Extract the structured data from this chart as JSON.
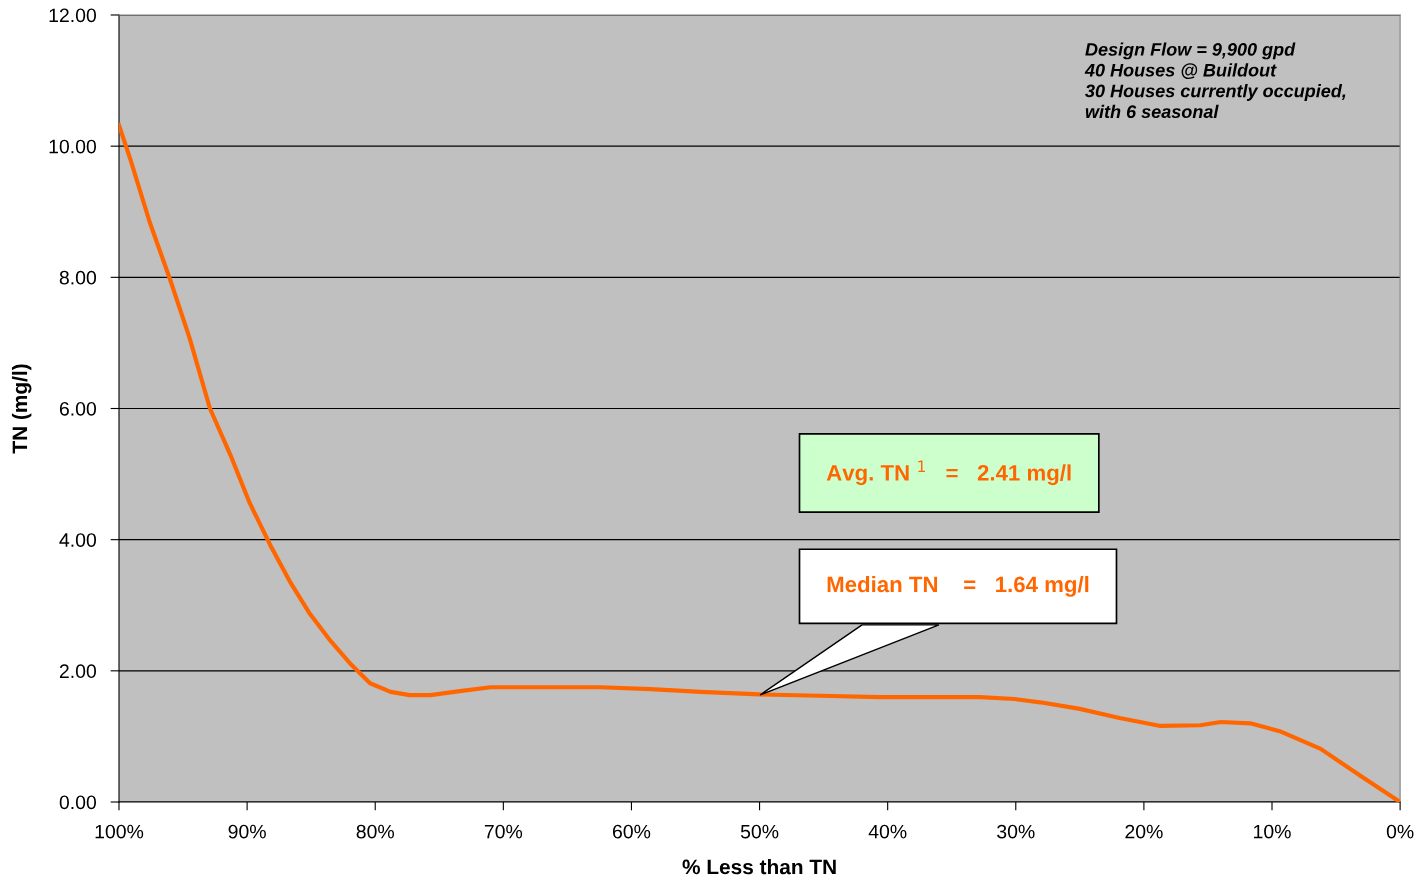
{
  "chart_data": {
    "type": "line",
    "xlabel": "% Less than TN",
    "ylabel": "TN (mg/l)",
    "x": [
      100,
      99.1,
      97.6,
      96.0,
      94.5,
      92.9,
      91.3,
      89.8,
      88.2,
      86.6,
      85.1,
      83.5,
      81.9,
      80.4,
      78.8,
      77.3,
      75.7,
      73.4,
      71.0,
      67.9,
      62.4,
      58.5,
      54.6,
      50,
      45.3,
      40.6,
      37.5,
      32.8,
      30.1,
      28.1,
      25.0,
      21.9,
      18.7,
      15.6,
      14.0,
      11.7,
      9.4,
      6.2,
      3.1,
      0
    ],
    "series": [
      {
        "color": "#ff6600",
        "values": [
          10.32,
          9.79,
          8.84,
          7.96,
          7.08,
          6.0,
          5.29,
          4.56,
          3.92,
          3.34,
          2.87,
          2.46,
          2.1,
          1.81,
          1.68,
          1.63,
          1.63,
          1.69,
          1.75,
          1.75,
          1.75,
          1.72,
          1.68,
          1.64,
          1.62,
          1.6,
          1.6,
          1.6,
          1.57,
          1.52,
          1.42,
          1.28,
          1.16,
          1.17,
          1.22,
          1.2,
          1.08,
          0.81,
          0.4,
          0
        ]
      }
    ],
    "xlim": [
      100,
      0
    ],
    "xticks": [
      {
        "value": 100,
        "label": "100%"
      },
      {
        "value": 90,
        "label": "90%"
      },
      {
        "value": 80,
        "label": "80%"
      },
      {
        "value": 70,
        "label": "70%"
      },
      {
        "value": 60,
        "label": "60%"
      },
      {
        "value": 50,
        "label": "50%"
      },
      {
        "value": 40,
        "label": "40%"
      },
      {
        "value": 30,
        "label": "30%"
      },
      {
        "value": 20,
        "label": "20%"
      },
      {
        "value": 10,
        "label": "10%"
      },
      {
        "value": 0,
        "label": "0%"
      }
    ],
    "ylim": [
      0,
      12
    ],
    "yticks": [
      {
        "value": 0,
        "label": "0.00"
      },
      {
        "value": 2,
        "label": "2.00"
      },
      {
        "value": 4,
        "label": "4.00"
      },
      {
        "value": 6,
        "label": "6.00"
      },
      {
        "value": 8,
        "label": "8.00"
      },
      {
        "value": 10,
        "label": "10.00"
      },
      {
        "value": 12,
        "label": "12.00"
      }
    ],
    "grid": "y",
    "marker": "none",
    "line_style": "solid",
    "annotations": [
      "Design Flow = 9,900 gpd\n40 Houses @ Buildout\n30 Houses currently occupied,\nwith 6 seasonal",
      "Avg. TN $^{1}$   =   2.41 mg/l",
      "Median TN    =   1.64 mg/l"
    ]
  }
}
